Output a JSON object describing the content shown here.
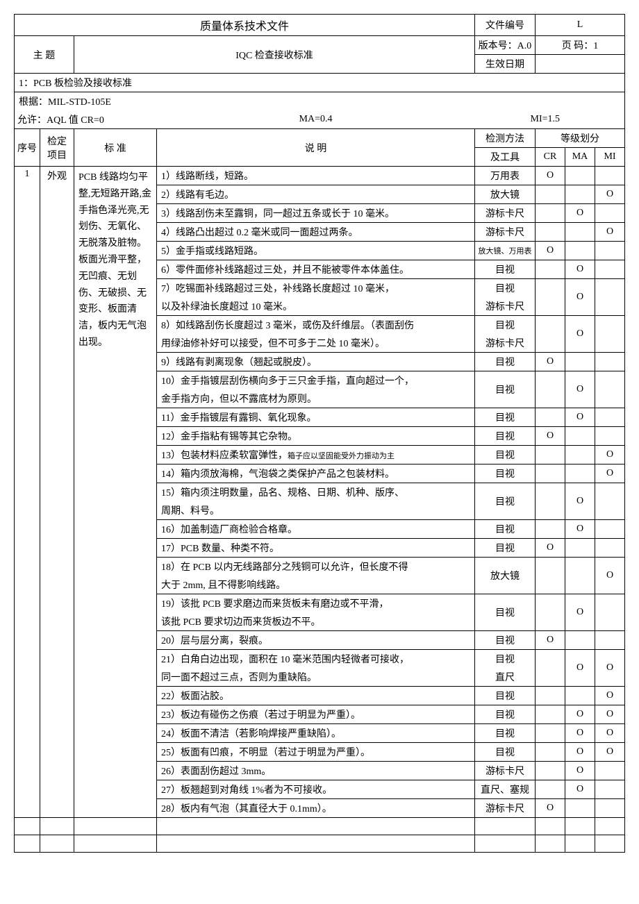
{
  "header": {
    "title": "质量体系技术文件",
    "docno_label": "文件编号",
    "docno_value": "L",
    "version_label": "版本号：A.0",
    "page_label": "页   码：1",
    "topic_label": "主  题",
    "topic_value": "IQC 检查接收标准",
    "effective_label": "生效日期"
  },
  "section1": {
    "title": "1：PCB 板检验及接收标准",
    "basis": "根据：MIL-STD-105E",
    "aql_cr": "允许：AQL 值   CR=0",
    "aql_ma": "MA=0.4",
    "aql_mi": "MI=1.5"
  },
  "cols": {
    "seq": "序号",
    "item": "检定项目",
    "std": "标   准",
    "desc": "说           明",
    "tool1": "检测方法",
    "tool2": "及工具",
    "grade": "等级划分",
    "cr": "CR",
    "ma": "MA",
    "mi": "MI"
  },
  "row1": {
    "seq": "1",
    "item": "外观",
    "standard": "PCB 线路均匀平整,无短路开路,金手指色泽光亮,无划伤、无氧化、无脱落及脏物。板面光滑平整，无凹痕、无划伤、无破损、无变形、板面清洁，板内无气泡出现。"
  },
  "items": [
    {
      "desc": "1）线路断线，短路。",
      "tool": "万用表",
      "cr": "O",
      "ma": "",
      "mi": ""
    },
    {
      "desc": "2）线路有毛边。",
      "tool": "放大镜",
      "cr": "",
      "ma": "",
      "mi": "O"
    },
    {
      "desc": "3）线路刮伤未至露铜，同一超过五条或长于 10 毫米。",
      "tool": "游标卡尺",
      "cr": "",
      "ma": "O",
      "mi": ""
    },
    {
      "desc": "4）线路凸出超过 0.2 毫米或同一面超过两条。",
      "tool": "游标卡尺",
      "cr": "",
      "ma": "",
      "mi": "O"
    },
    {
      "desc": "5）金手指或线路短路。",
      "tool": "放大镜、万用表",
      "tool_small": true,
      "cr": "O",
      "ma": "",
      "mi": ""
    },
    {
      "desc": "6）零件面修补线路超过三处，并且不能被零件本体盖住。",
      "tool": "目视",
      "cr": "",
      "ma": "O",
      "mi": ""
    },
    {
      "desc": "7）吃锡面补线路超过三处，补线路长度超过 10 毫米，",
      "desc2": "以及补绿油长度超过 10 毫米。",
      "tool": "目视",
      "tool2": "游标卡尺",
      "cr": "",
      "ma": "O",
      "mi": ""
    },
    {
      "desc": "8）如线路刮伤长度超过 3 毫米，或伤及纤维层。（表面刮伤",
      "desc2": "用绿油修补好可以接受，但不可多于二处 10 毫米）。",
      "tool": "目视",
      "tool2": "游标卡尺",
      "cr": "",
      "ma": "O",
      "mi": ""
    },
    {
      "desc": "9）线路有剥离现象（翘起或脱皮）。",
      "tool": "目视",
      "cr": "O",
      "ma": "",
      "mi": ""
    },
    {
      "desc": "10）金手指镀层刮伤横向多于三只金手指，直向超过一个，",
      "desc2": "金手指方向，但以不露底材为原则。",
      "tool": "目视",
      "cr": "",
      "ma": "O",
      "mi": ""
    },
    {
      "desc": "11）金手指镀层有露铜、氧化现象。",
      "tool": "目视",
      "cr": "",
      "ma": "O",
      "mi": ""
    },
    {
      "desc": "12）金手指粘有锡等其它杂物。",
      "tool": "目视",
      "cr": "O",
      "ma": "",
      "mi": ""
    },
    {
      "desc": "13）包装材料应柔软富弹性，箱子应以坚固能受外力振动为主",
      "desc_small_tail": true,
      "tool": "目视",
      "cr": "",
      "ma": "",
      "mi": "O"
    },
    {
      "desc": "14）箱内须放海棉，气泡袋之类保护产品之包装材料。",
      "tool": "目视",
      "cr": "",
      "ma": "",
      "mi": "O"
    },
    {
      "desc": "15）箱内须注明数量，品名、规格、日期、机种、版序、",
      "desc2": "周期、料号。",
      "tool": "目视",
      "cr": "",
      "ma": "O",
      "mi": ""
    },
    {
      "desc": "16）加盖制造厂商检验合格章。",
      "tool": "目视",
      "cr": "",
      "ma": "O",
      "mi": ""
    },
    {
      "desc": "17）PCB 数量、种类不符。",
      "tool": "目视",
      "cr": "O",
      "ma": "",
      "mi": ""
    },
    {
      "desc": "18）在 PCB 以内无线路部分之残铜可以允许，但长度不得",
      "desc2": "大于 2mm,  且不得影响线路。",
      "tool": "放大镜",
      "cr": "",
      "ma": "",
      "mi": "O"
    },
    {
      "desc": "19）该批 PCB 要求磨边而来货板未有磨边或不平滑，",
      "desc2": "该批 PCB 要求切边而来货板边不平。",
      "tool": "目视",
      "cr": "",
      "ma": "O",
      "mi": ""
    },
    {
      "desc": "20）层与层分离，裂痕。",
      "tool": "目视",
      "cr": "O",
      "ma": "",
      "mi": ""
    },
    {
      "desc": "21）白角白边出现，面积在 10 毫米范围内轻微者可接收，",
      "desc2": "同一面不超过三点，否则为重缺陷。",
      "tool": "目视",
      "tool2": "直尺",
      "cr": "",
      "ma": "O",
      "mi": "O"
    },
    {
      "desc": "22）板面沾胶。",
      "tool": "目视",
      "cr": "",
      "ma": "",
      "mi": "O"
    },
    {
      "desc": "23）板边有碰伤之伤痕（若过于明显为严重）。",
      "tool": "目视",
      "cr": "",
      "ma": "O",
      "mi": "O"
    },
    {
      "desc": "24）板面不清洁（若影响焊接严重缺陷）。",
      "tool": "目视",
      "cr": "",
      "ma": "O",
      "mi": "O"
    },
    {
      "desc": "25）板面有凹痕，不明显（若过于明显为严重）。",
      "tool": "目视",
      "cr": "",
      "ma": "O",
      "mi": "O"
    },
    {
      "desc": "26）表面刮伤超过 3mm。",
      "tool": "游标卡尺",
      "cr": "",
      "ma": "O",
      "mi": ""
    },
    {
      "desc": "27）板翘超到对角线 1%者为不可接收。",
      "tool": "直尺、塞规",
      "cr": "",
      "ma": "O",
      "mi": ""
    },
    {
      "desc": "28）板内有气泡（其直径大于 0.1mm）。",
      "tool": "游标卡尺",
      "cr": "O",
      "ma": "",
      "mi": ""
    }
  ]
}
